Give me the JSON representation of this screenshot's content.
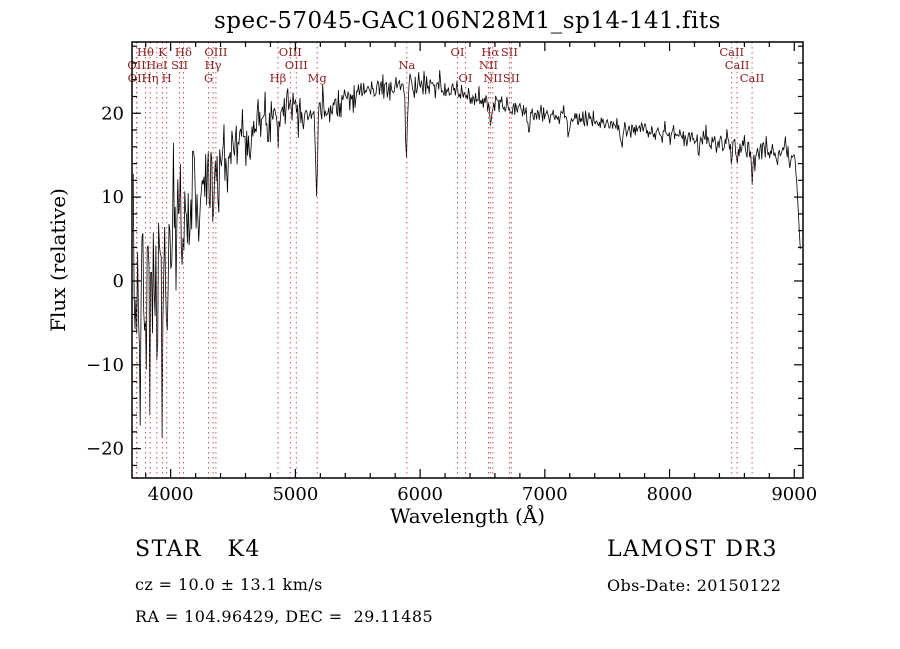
{
  "chart_data": {
    "type": "line",
    "title": "spec-57045-GAC106N28M1_sp14-141.fits",
    "xlabel": "Wavelength (Å)",
    "ylabel": "Flux (relative)",
    "xlim": [
      3690,
      9070
    ],
    "ylim": [
      -23.5,
      28.5
    ],
    "xticks": [
      4000,
      5000,
      6000,
      7000,
      8000,
      9000
    ],
    "yticks": [
      -20,
      -10,
      0,
      10,
      20
    ],
    "x_minor_step": 200,
    "y_minor_step": 2,
    "grid": "off",
    "legend": "none",
    "series_color": "#000000",
    "spectrum": {
      "x_start": 3700,
      "x_end": 9050,
      "x_step": 7,
      "seed": 7,
      "continuum": [
        [
          3700,
          -1
        ],
        [
          3750,
          -0.5
        ],
        [
          3800,
          -0.5
        ],
        [
          3850,
          0
        ],
        [
          3900,
          0.5
        ],
        [
          3950,
          2
        ],
        [
          4000,
          4.5
        ],
        [
          4050,
          6.5
        ],
        [
          4100,
          8
        ],
        [
          4150,
          9.5
        ],
        [
          4200,
          10.5
        ],
        [
          4250,
          11.5
        ],
        [
          4300,
          12
        ],
        [
          4350,
          13
        ],
        [
          4400,
          14.5
        ],
        [
          4450,
          15.5
        ],
        [
          4500,
          16.5
        ],
        [
          4600,
          17.5
        ],
        [
          4700,
          18.5
        ],
        [
          4800,
          19.5
        ],
        [
          4900,
          21
        ],
        [
          4950,
          21.5
        ],
        [
          5000,
          21
        ],
        [
          5100,
          20
        ],
        [
          5200,
          20
        ],
        [
          5300,
          21
        ],
        [
          5400,
          22
        ],
        [
          5500,
          22.5
        ],
        [
          5600,
          22.8
        ],
        [
          5700,
          23
        ],
        [
          5800,
          23.2
        ],
        [
          5900,
          23.2
        ],
        [
          6000,
          23.5
        ],
        [
          6100,
          23.2
        ],
        [
          6200,
          22.8
        ],
        [
          6300,
          22.5
        ],
        [
          6400,
          22
        ],
        [
          6500,
          21.5
        ],
        [
          6600,
          21
        ],
        [
          6700,
          20.8
        ],
        [
          6800,
          20.5
        ],
        [
          6900,
          20.2
        ],
        [
          7000,
          20
        ],
        [
          7100,
          19.8
        ],
        [
          7200,
          19.5
        ],
        [
          7300,
          19.2
        ],
        [
          7400,
          19
        ],
        [
          7500,
          18.7
        ],
        [
          7600,
          18.4
        ],
        [
          7700,
          18.2
        ],
        [
          7800,
          18
        ],
        [
          7900,
          17.7
        ],
        [
          8000,
          17.5
        ],
        [
          8100,
          17.2
        ],
        [
          8200,
          17
        ],
        [
          8300,
          16.8
        ],
        [
          8400,
          16.5
        ],
        [
          8500,
          16.2
        ],
        [
          8600,
          16
        ],
        [
          8700,
          15.8
        ],
        [
          8800,
          15.6
        ],
        [
          8900,
          15.4
        ],
        [
          8950,
          15.2
        ],
        [
          9000,
          14.8
        ],
        [
          9020,
          13
        ],
        [
          9035,
          8
        ],
        [
          9050,
          3
        ]
      ],
      "noise_sigma": [
        [
          3700,
          5
        ],
        [
          3750,
          5.5
        ],
        [
          3800,
          5.5
        ],
        [
          3850,
          5
        ],
        [
          3900,
          4.5
        ],
        [
          3950,
          4.5
        ],
        [
          4000,
          3.8
        ],
        [
          4100,
          3.2
        ],
        [
          4200,
          2.8
        ],
        [
          4300,
          2.6
        ],
        [
          4400,
          2.2
        ],
        [
          4500,
          1.9
        ],
        [
          4600,
          1.7
        ],
        [
          4700,
          1.5
        ],
        [
          4800,
          1.4
        ],
        [
          4900,
          1.3
        ],
        [
          5000,
          1.2
        ],
        [
          5200,
          1
        ],
        [
          5400,
          0.9
        ],
        [
          5600,
          0.8
        ],
        [
          5800,
          0.75
        ],
        [
          6000,
          0.7
        ],
        [
          6300,
          0.65
        ],
        [
          6600,
          0.6
        ],
        [
          7000,
          0.55
        ],
        [
          7500,
          0.5
        ],
        [
          8000,
          0.55
        ],
        [
          8500,
          0.7
        ],
        [
          8800,
          0.8
        ],
        [
          9050,
          0.9
        ]
      ],
      "absorption_features": [
        {
          "center": 3727,
          "depth": 5,
          "fwhm": 10
        },
        {
          "center": 3760,
          "depth": 13,
          "fwhm": 10
        },
        {
          "center": 3798,
          "depth": 15,
          "fwhm": 12
        },
        {
          "center": 3835,
          "depth": 11,
          "fwhm": 10
        },
        {
          "center": 3889,
          "depth": 9,
          "fwhm": 10
        },
        {
          "center": 3934,
          "depth": 13,
          "fwhm": 12
        },
        {
          "center": 3968,
          "depth": 11,
          "fwhm": 12
        },
        {
          "center": 4045,
          "depth": 5,
          "fwhm": 10
        },
        {
          "center": 4102,
          "depth": 6,
          "fwhm": 12
        },
        {
          "center": 4226,
          "depth": 6,
          "fwhm": 10
        },
        {
          "center": 4340,
          "depth": 5,
          "fwhm": 12
        },
        {
          "center": 4383,
          "depth": 5,
          "fwhm": 10
        },
        {
          "center": 4455,
          "depth": 4,
          "fwhm": 10
        },
        {
          "center": 4861,
          "depth": 3,
          "fwhm": 12
        },
        {
          "center": 5170,
          "depth": 9,
          "fwhm": 18
        },
        {
          "center": 5890,
          "depth": 9,
          "fwhm": 16
        },
        {
          "center": 6122,
          "depth": 2,
          "fwhm": 10
        },
        {
          "center": 6563,
          "depth": 3.5,
          "fwhm": 12
        },
        {
          "center": 6870,
          "depth": 2.5,
          "fwhm": 20
        },
        {
          "center": 7190,
          "depth": 1.5,
          "fwhm": 20
        },
        {
          "center": 7620,
          "depth": 2,
          "fwhm": 25
        },
        {
          "center": 8230,
          "depth": 1.5,
          "fwhm": 20
        },
        {
          "center": 8498,
          "depth": 3,
          "fwhm": 12
        },
        {
          "center": 8542,
          "depth": 3.5,
          "fwhm": 12
        },
        {
          "center": 8662,
          "depth": 3.5,
          "fwhm": 12
        }
      ]
    },
    "line_markers": {
      "line_color": "#cc5555",
      "label_color": "#8b2020",
      "lines": [
        {
          "label": "OII",
          "wavelength": 3727,
          "row": 2
        },
        {
          "label": "OII",
          "wavelength": 3729,
          "row": 3
        },
        {
          "label": "Hθ",
          "wavelength": 3798,
          "row": 1
        },
        {
          "label": "Hη",
          "wavelength": 3835,
          "row": 3
        },
        {
          "label": "HeI",
          "wavelength": 3889,
          "row": 2
        },
        {
          "label": "K",
          "wavelength": 3934,
          "row": 1
        },
        {
          "label": "H",
          "wavelength": 3968,
          "row": 3
        },
        {
          "label": "SII",
          "wavelength": 4072,
          "row": 2
        },
        {
          "label": "Hδ",
          "wavelength": 4102,
          "row": 1
        },
        {
          "label": "G",
          "wavelength": 4304,
          "row": 3
        },
        {
          "label": "Hγ",
          "wavelength": 4340,
          "row": 2
        },
        {
          "label": "OIII",
          "wavelength": 4363,
          "row": 1
        },
        {
          "label": "Hβ",
          "wavelength": 4861,
          "row": 3
        },
        {
          "label": "OIII",
          "wavelength": 4959,
          "row": 1
        },
        {
          "label": "OIII",
          "wavelength": 5007,
          "row": 2
        },
        {
          "label": "Mg",
          "wavelength": 5175,
          "row": 3
        },
        {
          "label": "Na",
          "wavelength": 5893,
          "row": 2
        },
        {
          "label": "OI",
          "wavelength": 6300,
          "row": 1
        },
        {
          "label": "OI",
          "wavelength": 6364,
          "row": 3
        },
        {
          "label": "NII",
          "wavelength": 6548,
          "row": 2
        },
        {
          "label": "Hα",
          "wavelength": 6563,
          "row": 1
        },
        {
          "label": "NII",
          "wavelength": 6583,
          "row": 3
        },
        {
          "label": "SII",
          "wavelength": 6716,
          "row": 1
        },
        {
          "label": "SII",
          "wavelength": 6731,
          "row": 3
        },
        {
          "label": "CaII",
          "wavelength": 8498,
          "row": 1
        },
        {
          "label": "CaII",
          "wavelength": 8542,
          "row": 2
        },
        {
          "label": "CaII",
          "wavelength": 8662,
          "row": 3
        }
      ]
    }
  },
  "footer": {
    "object_class": "STAR   K4",
    "survey": "LAMOST DR3",
    "cz": "cz = 10.0 ± 13.1 km/s",
    "obs_date": "Obs-Date: 20150122",
    "coords": "RA = 104.96429, DEC =  29.11485"
  }
}
